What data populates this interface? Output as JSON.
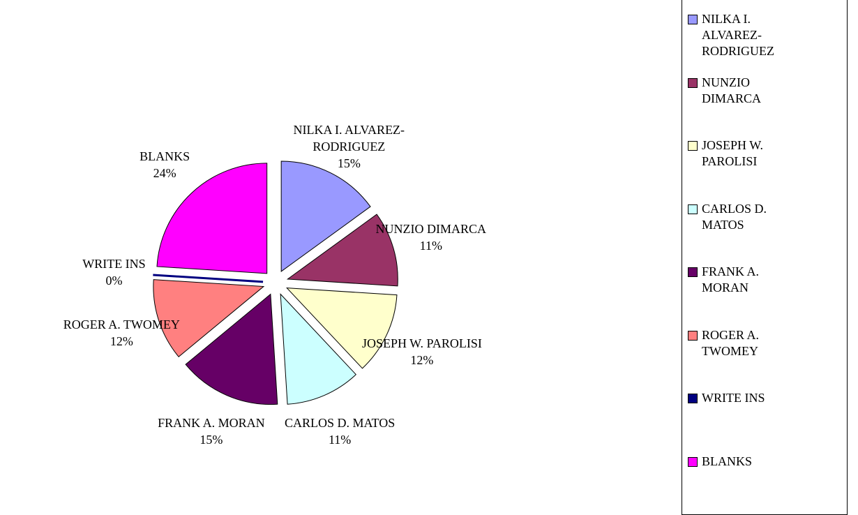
{
  "chart_data": {
    "type": "pie",
    "categories": [
      "NILKA I. ALVAREZ-RODRIGUEZ",
      "NUNZIO DIMARCA",
      "JOSEPH W. PAROLISI",
      "CARLOS D. MATOS",
      "FRANK A. MORAN",
      "ROGER A. TWOMEY",
      "WRITE INS",
      "BLANKS"
    ],
    "values": [
      15,
      11,
      12,
      11,
      15,
      12,
      0,
      24
    ],
    "value_labels": [
      "15%",
      "11%",
      "12%",
      "11%",
      "15%",
      "12%",
      "0%",
      "24%"
    ],
    "colors": [
      "#9999ff",
      "#993366",
      "#ffffcc",
      "#ccffff",
      "#660066",
      "#ff8080",
      "#000080",
      "#ff00ff"
    ],
    "legend": "right"
  }
}
